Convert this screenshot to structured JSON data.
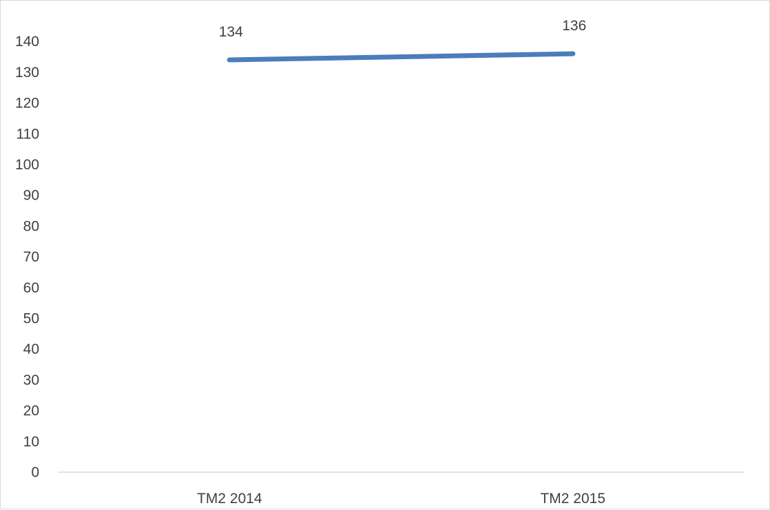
{
  "chart_data": {
    "type": "line",
    "title": "",
    "xlabel": "",
    "ylabel": "",
    "categories": [
      "TM2 2014",
      "TM2 2015"
    ],
    "series": [
      {
        "values": [
          134,
          136
        ],
        "color": "#4a7ebb",
        "data_labels": [
          "134",
          "136"
        ]
      }
    ],
    "ylim": [
      0,
      140
    ],
    "yticks": [
      "0",
      "10",
      "20",
      "30",
      "40",
      "50",
      "60",
      "70",
      "80",
      "90",
      "100",
      "110",
      "120",
      "130",
      "140"
    ],
    "grid": false,
    "legend": "none"
  }
}
